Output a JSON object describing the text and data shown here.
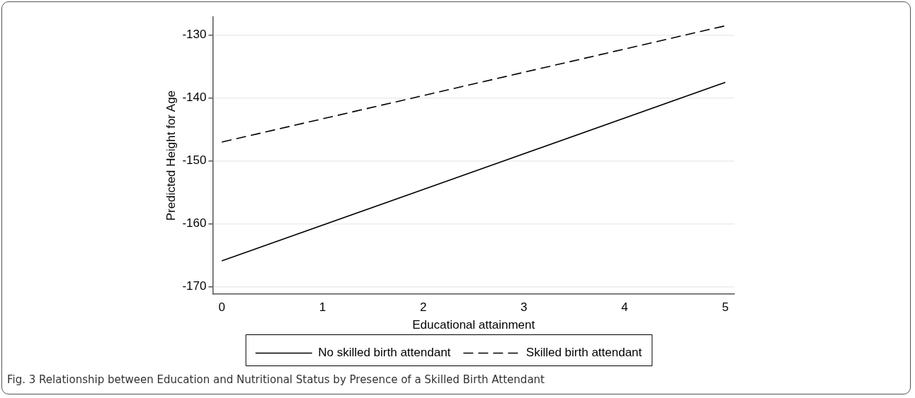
{
  "chart_data": {
    "type": "line",
    "xlabel": "Educational attainment",
    "ylabel": "Predicted Height for Age",
    "x": [
      0,
      5
    ],
    "series": [
      {
        "name": "No skilled birth attendant",
        "color": "#000000",
        "values": [
          -165.9,
          -137.5
        ],
        "line_style": "solid"
      },
      {
        "name": "Skilled birth attendant",
        "color": "#000000",
        "values": [
          -147.0,
          -128.5
        ],
        "line_style": "dashed"
      }
    ],
    "xlim": [
      -0.09,
      5.09
    ],
    "xticks": [
      0,
      1,
      2,
      3,
      4,
      5
    ],
    "ylim": [
      -171.2,
      -127.1
    ],
    "yticks": [
      -170,
      -160,
      -150,
      -140,
      -130
    ],
    "grid": "y",
    "legend": "bottom",
    "marker": "none",
    "annotations": [
      "Fig. 3 Relationship between Education and Nutritional Status by Presence of a Skilled Birth Attendant"
    ]
  }
}
